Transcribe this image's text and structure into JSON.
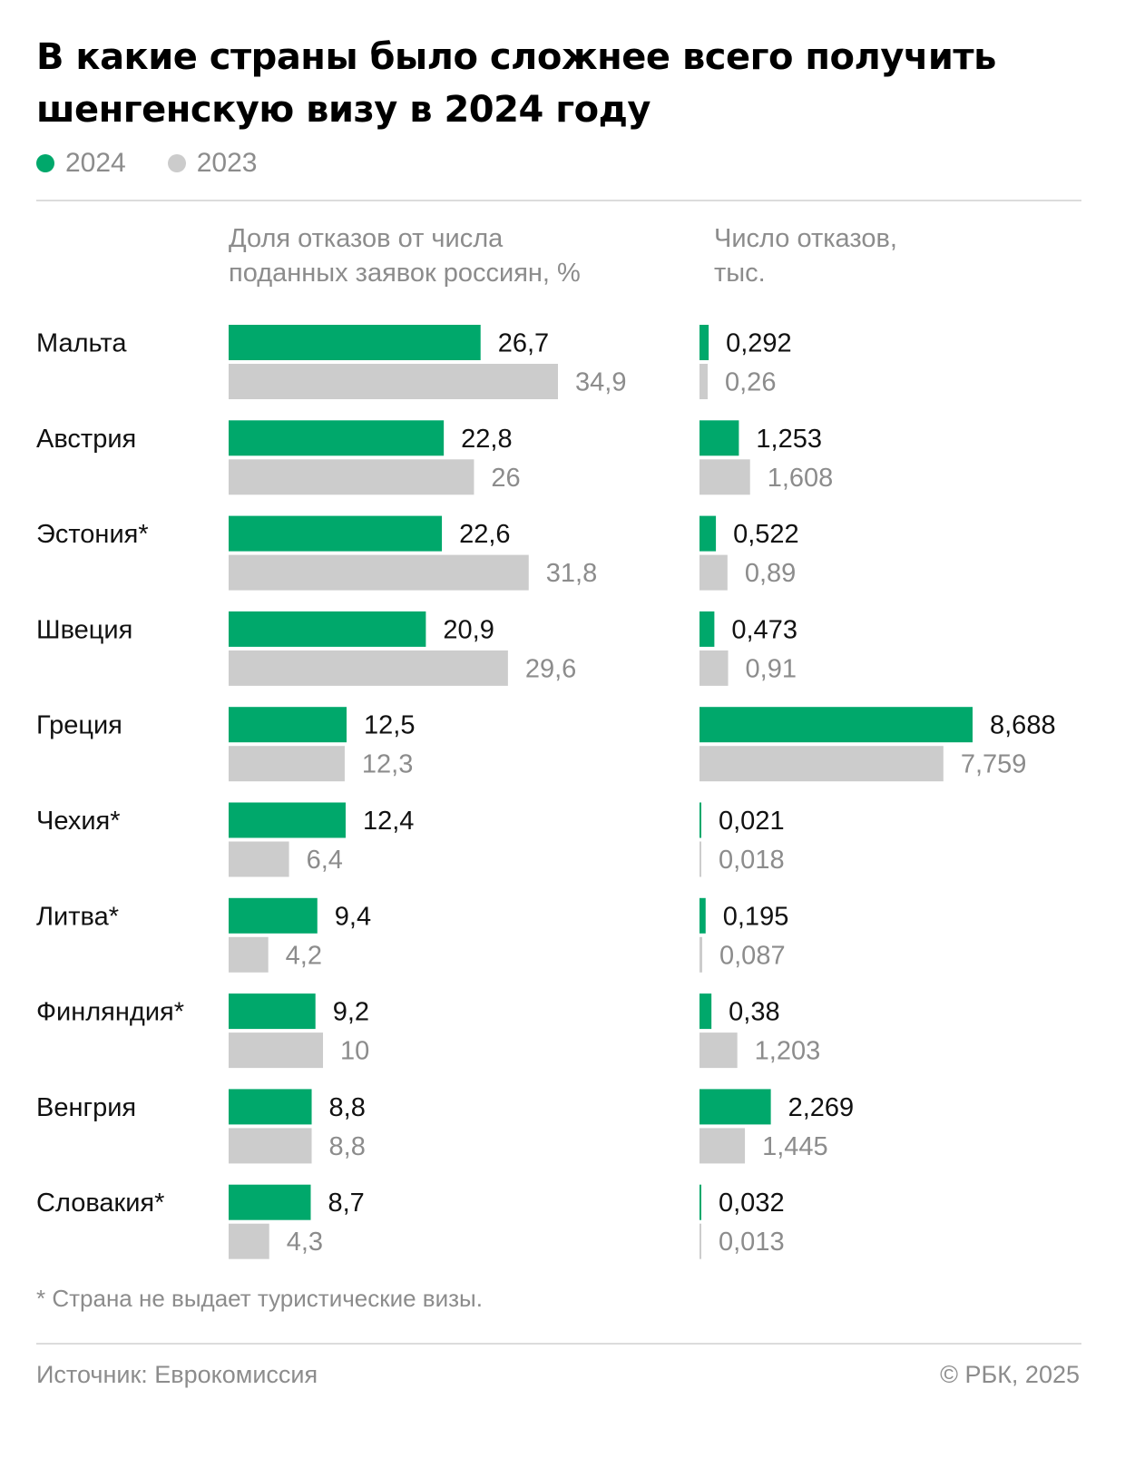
{
  "title_lines": [
    "В какие страны было сложнее всего получить",
    "шенгенскую визу в 2024 году"
  ],
  "legend": [
    {
      "label": "2024",
      "color": "#00a86b"
    },
    {
      "label": "2023",
      "color": "#cccccc"
    }
  ],
  "column_headers": {
    "share": [
      "Доля отказов от числа",
      "поданных заявок россиян, %"
    ],
    "count": [
      "Число отказов,",
      "тыс."
    ]
  },
  "footnote": "* Страна не выдает туристические визы.",
  "source": "Источник: Еврокомиссия",
  "copyright": "© РБК, 2025",
  "colors": {
    "series_2024": "#00a86b",
    "series_2023": "#cccccc",
    "label_2024": "#111111",
    "label_2023": "#8c8c8c"
  },
  "chart_data": [
    {
      "type": "bar",
      "orientation": "horizontal",
      "ylabel": "Доля отказов от числа поданных заявок россиян, %",
      "categories": [
        "Мальта",
        "Австрия",
        "Эстония*",
        "Швеция",
        "Греция",
        "Чехия*",
        "Литва*",
        "Финляндия*",
        "Венгрия",
        "Словакия*"
      ],
      "series": [
        {
          "name": "2024",
          "values": [
            26.7,
            22.8,
            22.6,
            20.9,
            12.5,
            12.4,
            9.4,
            9.2,
            8.8,
            8.7
          ],
          "labels": [
            "26,7",
            "22,8",
            "22,6",
            "20,9",
            "12,5",
            "12,4",
            "9,4",
            "9,2",
            "8,8",
            "8,7"
          ]
        },
        {
          "name": "2023",
          "values": [
            34.9,
            26,
            31.8,
            29.6,
            12.3,
            6.4,
            4.2,
            10,
            8.8,
            4.3
          ],
          "labels": [
            "34,9",
            "26",
            "31,8",
            "29,6",
            "12,3",
            "6,4",
            "4,2",
            "10",
            "8,8",
            "4,3"
          ]
        }
      ],
      "xlim": [
        0,
        34.9
      ],
      "grid": false
    },
    {
      "type": "bar",
      "orientation": "horizontal",
      "ylabel": "Число отказов, тыс.",
      "categories": [
        "Мальта",
        "Австрия",
        "Эстония*",
        "Швеция",
        "Греция",
        "Чехия*",
        "Литва*",
        "Финляндия*",
        "Венгрия",
        "Словакия*"
      ],
      "series": [
        {
          "name": "2024",
          "values": [
            0.292,
            1.253,
            0.522,
            0.473,
            8.688,
            0.021,
            0.195,
            0.38,
            2.269,
            0.032
          ],
          "labels": [
            "0,292",
            "1,253",
            "0,522",
            "0,473",
            "8,688",
            "0,021",
            "0,195",
            "0,38",
            "2,269",
            "0,032"
          ]
        },
        {
          "name": "2023",
          "values": [
            0.26,
            1.608,
            0.89,
            0.91,
            7.759,
            0.018,
            0.087,
            1.203,
            1.445,
            0.013
          ],
          "labels": [
            "0,26",
            "1,608",
            "0,89",
            "0,91",
            "7,759",
            "0,018",
            "0,087",
            "1,203",
            "1,445",
            "0,013"
          ]
        }
      ],
      "xlim": [
        0,
        8.688
      ],
      "grid": false
    }
  ]
}
